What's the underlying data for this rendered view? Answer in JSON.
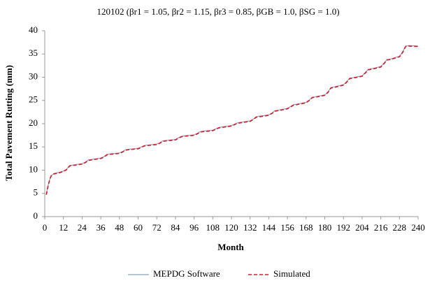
{
  "chart_data": {
    "type": "line",
    "title": "120102 (βr1 = 1.05, βr2 = 1.15, βr3 = 0.85, βGB = 1.0, βSG = 1.0)",
    "x_label": "Month",
    "y_label": "Total Pavement Rutting (mm)",
    "x": [
      1,
      2,
      3,
      4,
      6,
      9,
      12,
      14,
      16,
      18,
      24,
      26,
      28,
      30,
      36,
      38,
      40,
      42,
      48,
      50,
      52,
      54,
      60,
      62,
      64,
      66,
      72,
      74,
      76,
      78,
      84,
      86,
      88,
      90,
      96,
      98,
      100,
      102,
      108,
      110,
      112,
      114,
      120,
      122,
      124,
      126,
      132,
      134,
      136,
      138,
      144,
      146,
      148,
      150,
      156,
      158,
      160,
      162,
      168,
      170,
      172,
      174,
      180,
      182,
      184,
      186,
      192,
      194,
      196,
      198,
      204,
      206,
      208,
      210,
      216,
      218,
      220,
      222,
      228,
      230,
      232,
      234,
      240
    ],
    "series": [
      {
        "name": "MEPDG Software",
        "color": "#7fa7c9",
        "dash": false,
        "values": [
          4.8,
          6.5,
          7.8,
          8.8,
          9.3,
          9.5,
          9.8,
          10.2,
          11.0,
          11.1,
          11.4,
          11.7,
          12.2,
          12.3,
          12.6,
          12.9,
          13.4,
          13.5,
          13.7,
          14.0,
          14.4,
          14.5,
          14.7,
          15.0,
          15.3,
          15.4,
          15.6,
          15.9,
          16.3,
          16.4,
          16.6,
          17.0,
          17.3,
          17.4,
          17.6,
          17.9,
          18.3,
          18.4,
          18.6,
          18.9,
          19.2,
          19.3,
          19.6,
          19.9,
          20.2,
          20.3,
          20.6,
          21.0,
          21.5,
          21.6,
          21.9,
          22.3,
          22.8,
          22.9,
          23.3,
          23.7,
          24.1,
          24.2,
          24.6,
          25.1,
          25.7,
          25.8,
          26.2,
          26.8,
          27.8,
          27.9,
          28.4,
          29.0,
          29.8,
          29.9,
          30.3,
          31.0,
          31.7,
          31.8,
          32.3,
          33.0,
          33.8,
          33.9,
          34.5,
          35.4,
          36.7,
          36.8,
          36.7
        ]
      },
      {
        "name": "Simulated",
        "color": "#e8101c",
        "dash": true,
        "values": [
          4.7,
          6.4,
          7.7,
          8.7,
          9.2,
          9.4,
          9.7,
          10.1,
          10.9,
          11.0,
          11.3,
          11.6,
          12.1,
          12.2,
          12.5,
          12.8,
          13.3,
          13.4,
          13.6,
          13.9,
          14.3,
          14.4,
          14.6,
          14.9,
          15.2,
          15.3,
          15.5,
          15.8,
          16.2,
          16.3,
          16.5,
          16.9,
          17.2,
          17.3,
          17.5,
          17.8,
          18.2,
          18.3,
          18.5,
          18.8,
          19.1,
          19.2,
          19.5,
          19.8,
          20.1,
          20.2,
          20.5,
          20.9,
          21.4,
          21.5,
          21.8,
          22.2,
          22.7,
          22.8,
          23.2,
          23.6,
          24.0,
          24.1,
          24.5,
          25.0,
          25.6,
          25.7,
          26.1,
          26.7,
          27.7,
          27.8,
          28.3,
          28.9,
          29.7,
          29.8,
          30.2,
          30.9,
          31.6,
          31.7,
          32.2,
          32.9,
          33.7,
          33.8,
          34.4,
          35.3,
          36.6,
          36.7,
          36.6
        ]
      }
    ],
    "xlim": [
      0,
      240
    ],
    "xticks": [
      0,
      12,
      24,
      36,
      48,
      60,
      72,
      84,
      96,
      108,
      120,
      132,
      144,
      156,
      168,
      180,
      192,
      204,
      216,
      228,
      240
    ],
    "ylim": [
      0,
      40
    ],
    "yticks": [
      0,
      5,
      10,
      15,
      20,
      25,
      30,
      35,
      40
    ],
    "grid": false,
    "legend": "bottom"
  }
}
